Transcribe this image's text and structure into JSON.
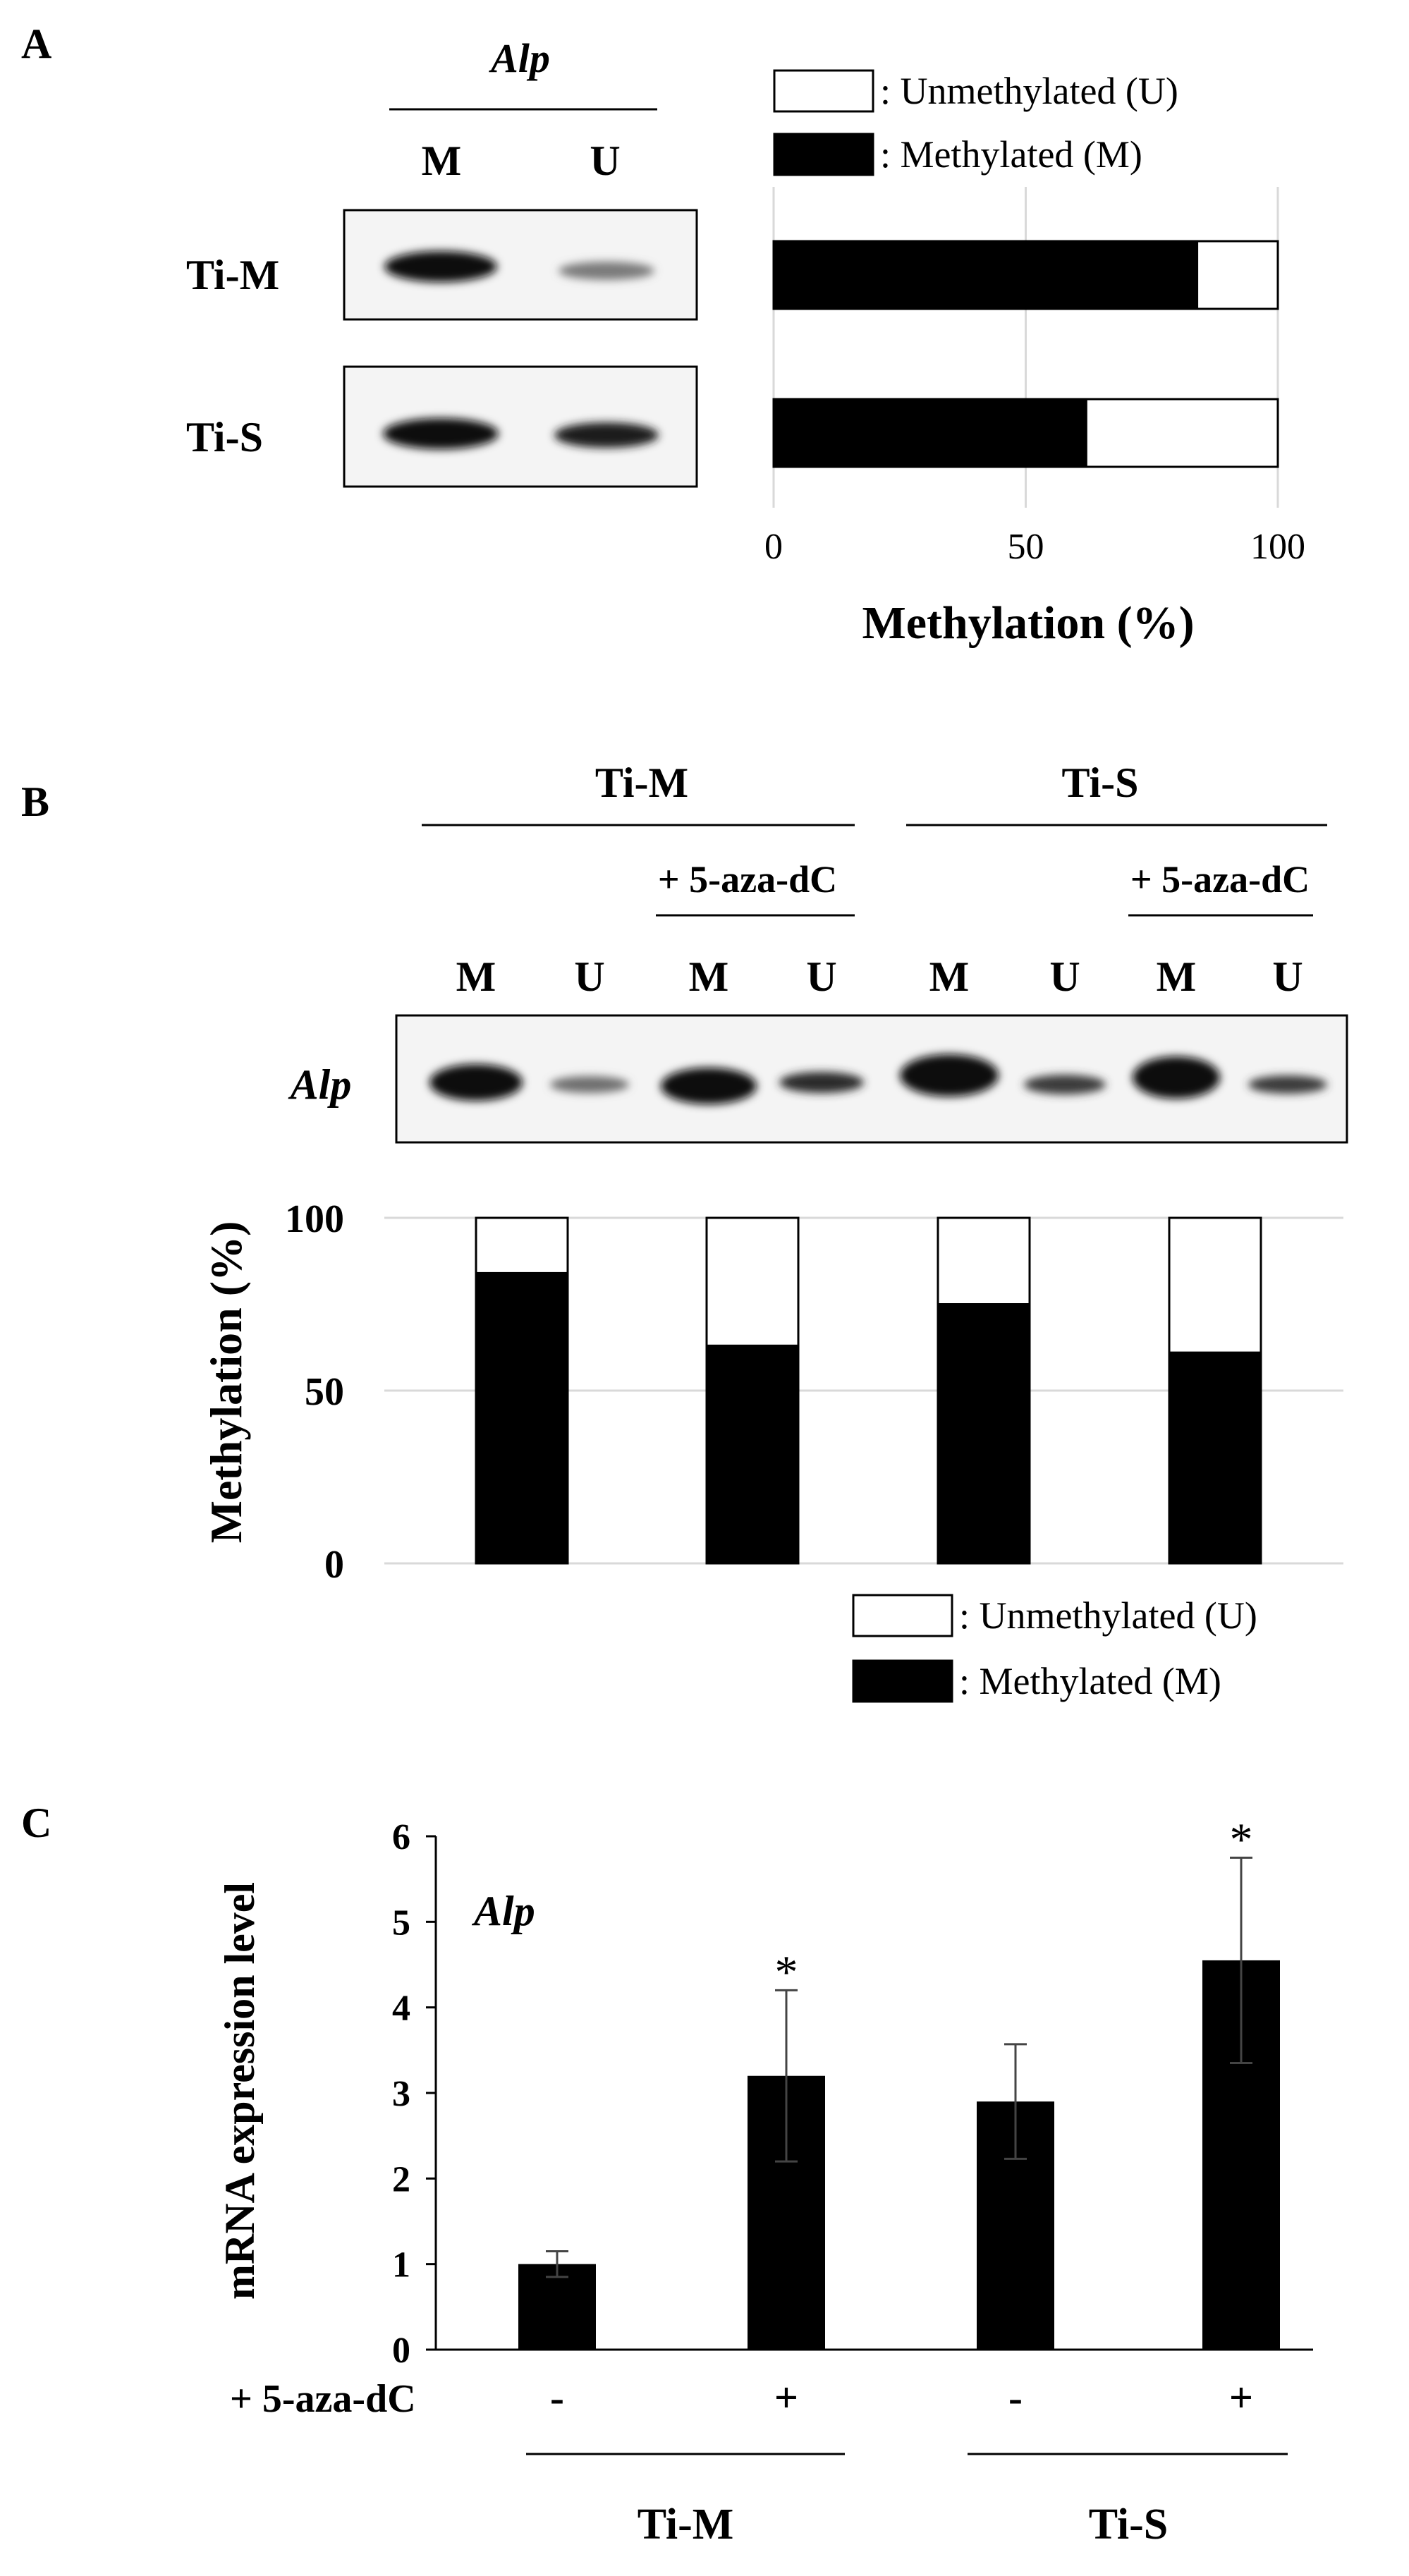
{
  "panels": {
    "A": {
      "letter": "A",
      "gene": "Alp",
      "lane_labels": [
        "M",
        "U"
      ],
      "rows": [
        "Ti-M",
        "Ti-S"
      ],
      "legend": {
        "unmethylated": ": Unmethylated (U)",
        "methylated": ": Methylated (M)"
      },
      "xlabel": "Methylation (%)"
    },
    "B": {
      "letter": "B",
      "groups": [
        "Ti-M",
        "Ti-S"
      ],
      "treatment": "+ 5-aza-dC",
      "lane_labels": [
        "M",
        "U",
        "M",
        "U",
        "M",
        "U",
        "M",
        "U"
      ],
      "gene": "Alp",
      "ylabel": "Methylation (%)",
      "legend": {
        "unmethylated": ": Unmethylated (U)",
        "methylated": ": Methylated (M)"
      }
    },
    "C": {
      "letter": "C",
      "gene": "Alp",
      "ylabel": "mRNA expression level",
      "treatment_label": "+ 5-aza-dC",
      "treatment_signs": [
        "-",
        "+",
        "-",
        "+"
      ],
      "groups": [
        "Ti-M",
        "Ti-S"
      ],
      "sig_marker": "*"
    }
  },
  "colors": {
    "methylated": "#000000",
    "unmethylated": "#ffffff",
    "axis": "#000000",
    "grid": "#d9d9d9",
    "gel_bg": "#f4f4f4"
  },
  "chart_data": [
    {
      "panel": "A",
      "type": "bar",
      "orientation": "horizontal",
      "stacked": true,
      "categories": [
        "Ti-M",
        "Ti-S"
      ],
      "series": [
        {
          "name": "Methylated (M)",
          "values": [
            84,
            62
          ]
        },
        {
          "name": "Unmethylated (U)",
          "values": [
            16,
            38
          ]
        }
      ],
      "xlabel": "Methylation (%)",
      "xlim": [
        0,
        100
      ],
      "xticks": [
        0,
        50,
        100
      ],
      "grid": true,
      "legend": "top"
    },
    {
      "panel": "B",
      "type": "bar",
      "stacked": true,
      "categories": [
        "Ti-M",
        "Ti-M + 5-aza-dC",
        "Ti-S",
        "Ti-S + 5-aza-dC"
      ],
      "series": [
        {
          "name": "Methylated (M)",
          "values": [
            84,
            63,
            75,
            61
          ]
        },
        {
          "name": "Unmethylated (U)",
          "values": [
            16,
            37,
            25,
            39
          ]
        }
      ],
      "ylabel": "Methylation (%)",
      "ylim": [
        0,
        100
      ],
      "yticks": [
        0,
        50,
        100
      ],
      "grid": true,
      "legend": "bottom-right"
    },
    {
      "panel": "C",
      "type": "bar",
      "categories": [
        "Ti-M -",
        "Ti-M +",
        "Ti-S -",
        "Ti-S +"
      ],
      "values": [
        1.0,
        3.2,
        2.9,
        4.55
      ],
      "errors": [
        0.15,
        1.0,
        0.67,
        1.2
      ],
      "significant": [
        false,
        true,
        false,
        true
      ],
      "ylabel": "mRNA expression level",
      "ylim": [
        0,
        6
      ],
      "yticks": [
        0,
        1,
        2,
        3,
        4,
        5,
        6
      ],
      "grid": false
    }
  ]
}
